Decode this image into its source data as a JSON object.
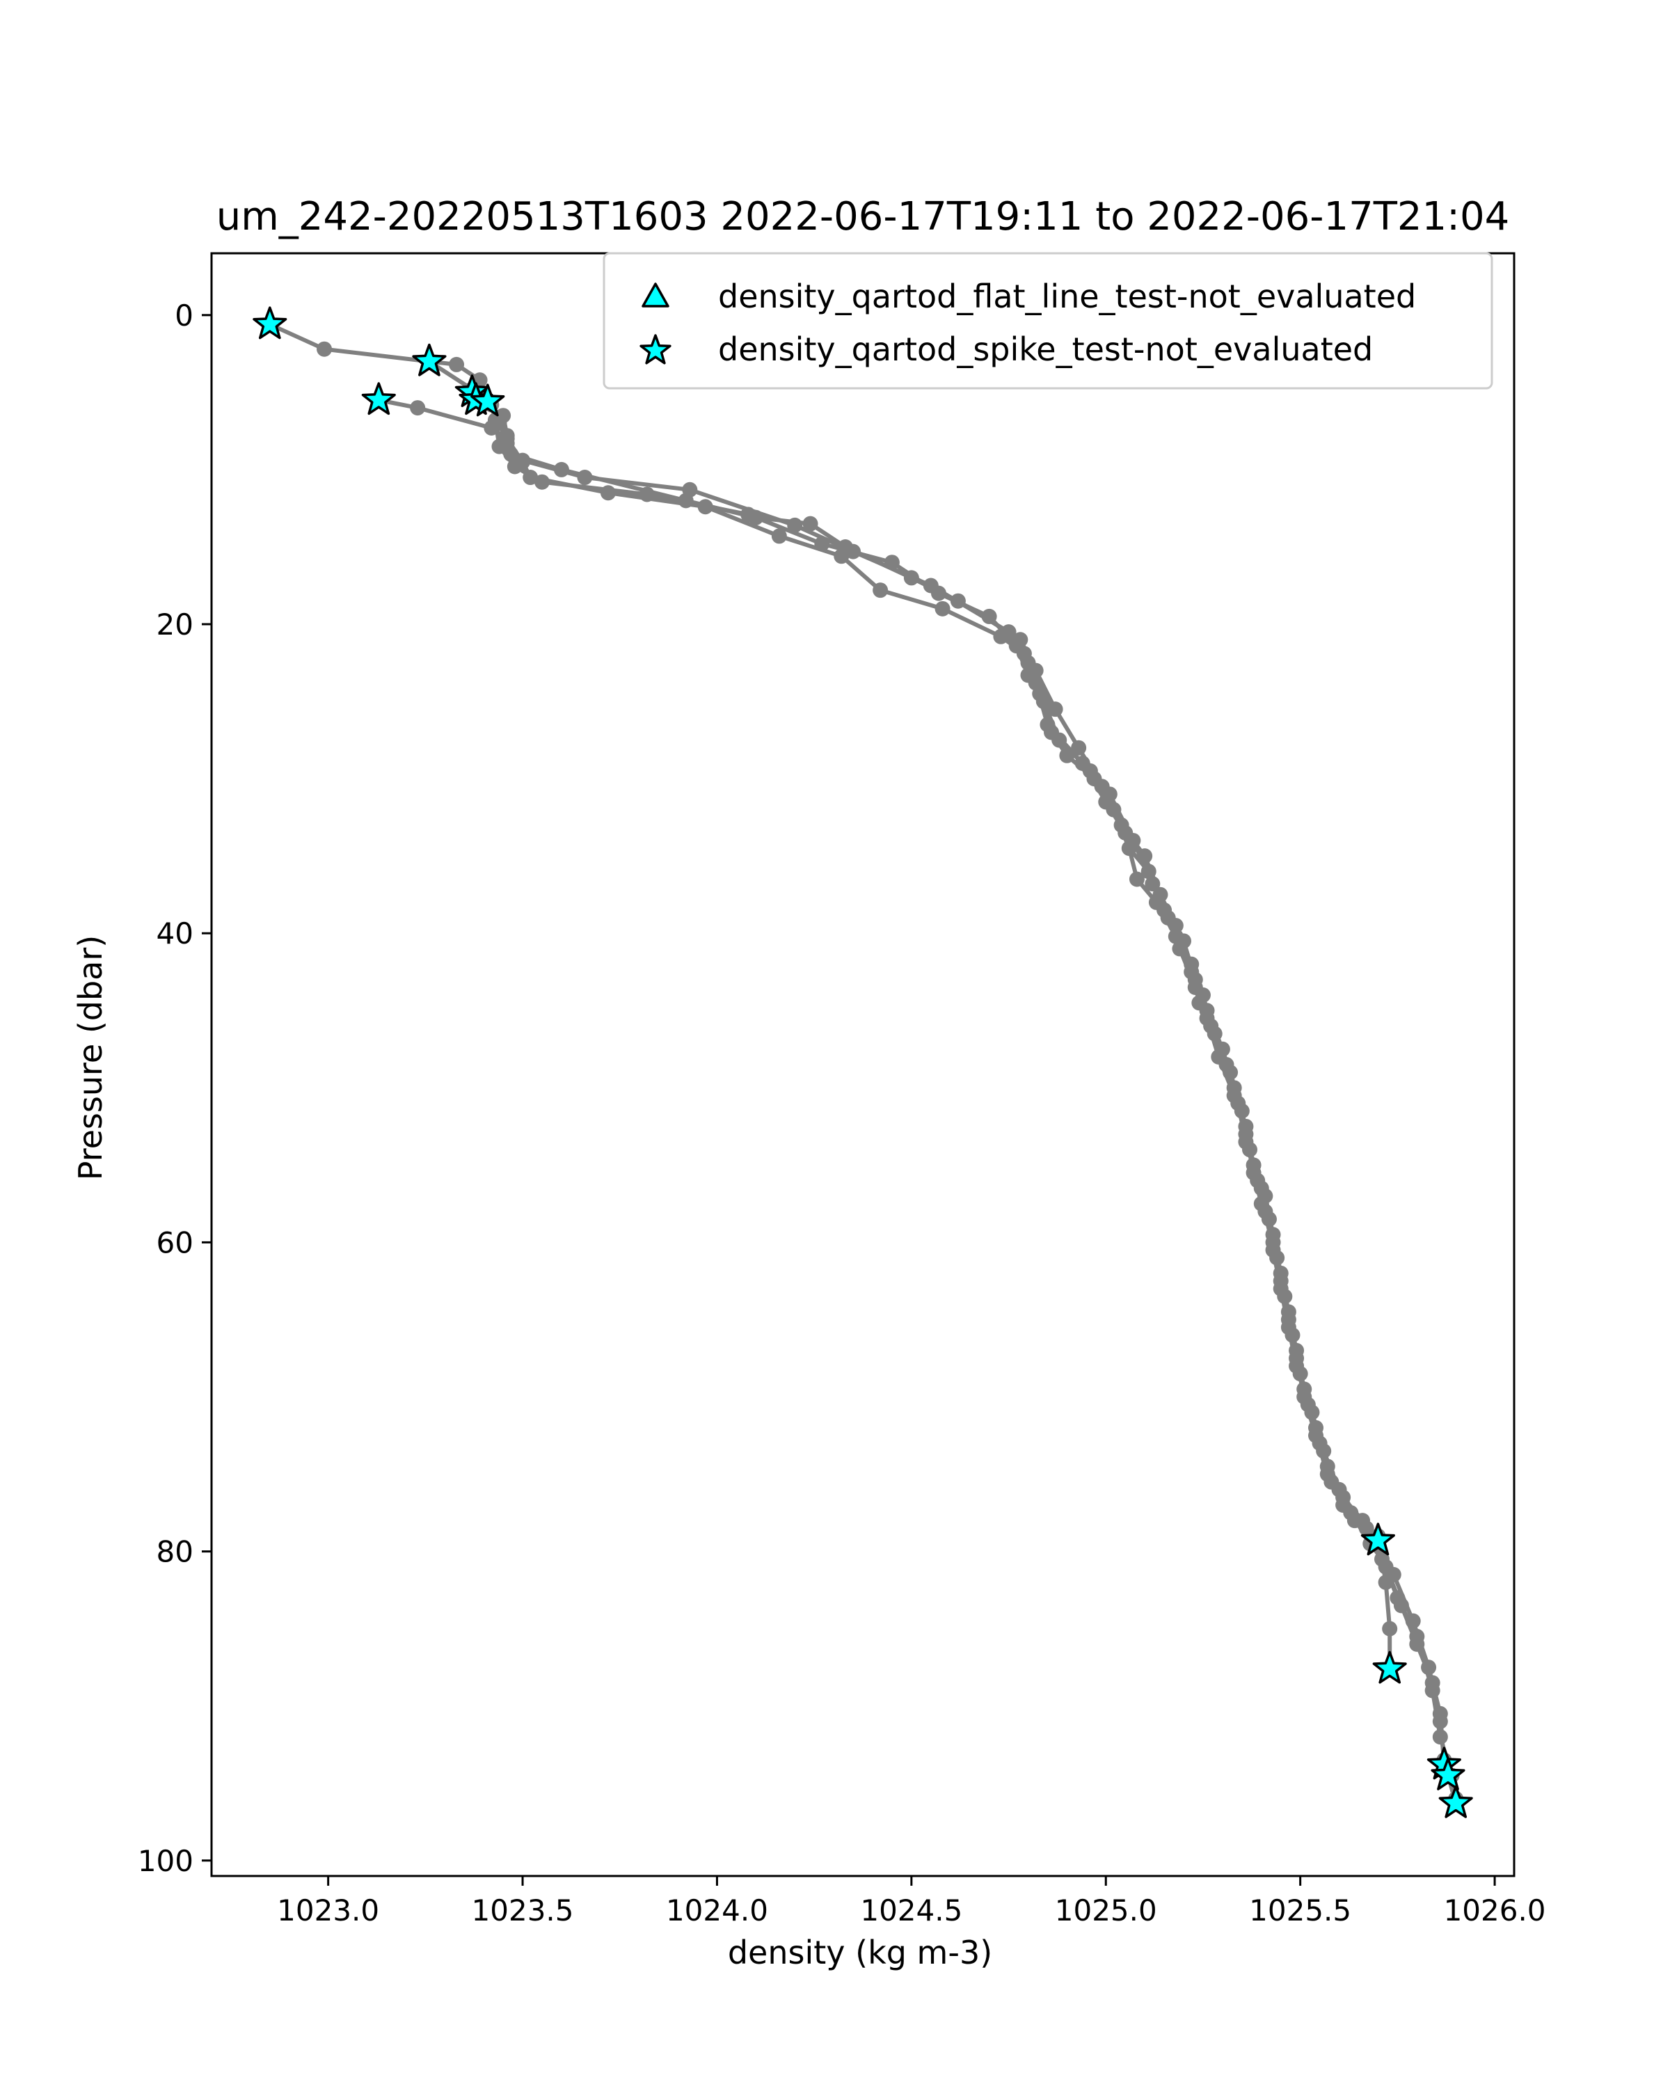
{
  "chart_data": {
    "type": "line",
    "title": "um_242-20220513T1603 2022-06-17T19:11 to 2022-06-17T21:04",
    "xlabel": "density (kg m-3)",
    "ylabel": "Pressure (dbar)",
    "xlim": [
      1022.7,
      1026.05
    ],
    "ylim": [
      101,
      -4
    ],
    "y_inverted": true,
    "x_ticks": [
      1023.0,
      1023.5,
      1024.0,
      1024.5,
      1025.0,
      1025.5,
      1026.0
    ],
    "x_tick_labels": [
      "1023.0",
      "1023.5",
      "1024.0",
      "1024.5",
      "1025.0",
      "1025.5",
      "1026.0"
    ],
    "y_ticks": [
      0,
      20,
      40,
      60,
      80,
      100
    ],
    "y_tick_labels": [
      "0",
      "20",
      "40",
      "60",
      "80",
      "100"
    ],
    "grid": false,
    "legend_position": "top-right",
    "colors": {
      "profile_line": "#808080",
      "flag_marker_fill": "#00ffff",
      "flag_marker_edge": "#000000"
    },
    "legend": [
      {
        "label": "density_qartod_flat_line_test-not_evaluated",
        "marker": "triangle"
      },
      {
        "label": "density_qartod_spike_test-not_evaluated",
        "marker": "star"
      }
    ],
    "series": [
      {
        "marker": "dot",
        "points": [
          [
            1022.85,
            0.6
          ],
          [
            1022.99,
            2.2
          ],
          [
            1023.26,
            3.0
          ],
          [
            1023.33,
            3.2
          ],
          [
            1023.39,
            4.2
          ],
          [
            1023.41,
            5.5
          ],
          [
            1023.44,
            7.0
          ],
          [
            1023.46,
            8.3
          ],
          [
            1023.5,
            9.4
          ],
          [
            1023.66,
            10.5
          ],
          [
            1023.93,
            11.3
          ],
          [
            1024.2,
            13.6
          ],
          [
            1024.35,
            15.3
          ],
          [
            1024.55,
            17.5
          ],
          [
            1024.75,
            20.5
          ],
          [
            1024.8,
            22.5
          ],
          [
            1024.83,
            24.5
          ],
          [
            1024.86,
            27.0
          ],
          [
            1024.9,
            28.5
          ],
          [
            1024.97,
            30.0
          ],
          [
            1025.02,
            32.0
          ],
          [
            1025.06,
            34.5
          ],
          [
            1025.11,
            36.0
          ],
          [
            1025.15,
            38.5
          ],
          [
            1025.2,
            40.5
          ],
          [
            1025.23,
            43.0
          ],
          [
            1025.26,
            45.0
          ],
          [
            1025.3,
            47.5
          ],
          [
            1025.33,
            50.0
          ],
          [
            1025.36,
            52.5
          ],
          [
            1025.38,
            55.0
          ],
          [
            1025.41,
            57.0
          ],
          [
            1025.43,
            59.5
          ],
          [
            1025.45,
            62.0
          ],
          [
            1025.47,
            64.5
          ],
          [
            1025.49,
            67.0
          ],
          [
            1025.51,
            69.5
          ],
          [
            1025.54,
            72.0
          ],
          [
            1025.57,
            74.5
          ],
          [
            1025.61,
            76.5
          ],
          [
            1025.66,
            78.0
          ],
          [
            1025.7,
            79.3
          ],
          [
            1025.72,
            81.0
          ],
          [
            1025.76,
            83.5
          ],
          [
            1025.8,
            86.0
          ],
          [
            1025.84,
            88.5
          ],
          [
            1025.86,
            91.0
          ],
          [
            1025.87,
            93.5
          ],
          [
            1025.88,
            94.5
          ],
          [
            1025.9,
            96.3
          ]
        ]
      },
      {
        "marker": "dot",
        "points": [
          [
            1023.26,
            3.0
          ],
          [
            1023.37,
            4.8
          ],
          [
            1023.38,
            5.5
          ],
          [
            1023.45,
            6.5
          ],
          [
            1023.46,
            7.8
          ],
          [
            1023.47,
            9.0
          ],
          [
            1023.6,
            10.0
          ],
          [
            1023.92,
            12.0
          ],
          [
            1024.1,
            13.1
          ],
          [
            1024.24,
            13.5
          ],
          [
            1024.33,
            15.0
          ],
          [
            1024.5,
            17.0
          ],
          [
            1024.62,
            18.5
          ],
          [
            1024.78,
            21.0
          ],
          [
            1024.82,
            23.0
          ],
          [
            1024.87,
            25.5
          ],
          [
            1024.93,
            28.0
          ],
          [
            1024.99,
            30.5
          ],
          [
            1025.04,
            33.0
          ],
          [
            1025.1,
            35.0
          ],
          [
            1025.14,
            37.5
          ],
          [
            1025.18,
            39.5
          ],
          [
            1025.22,
            42.0
          ],
          [
            1025.24,
            44.5
          ],
          [
            1025.28,
            46.5
          ],
          [
            1025.32,
            49.0
          ],
          [
            1025.35,
            51.5
          ],
          [
            1025.37,
            54.0
          ],
          [
            1025.4,
            56.5
          ],
          [
            1025.42,
            58.5
          ],
          [
            1025.44,
            61.0
          ],
          [
            1025.46,
            63.5
          ],
          [
            1025.48,
            66.0
          ],
          [
            1025.5,
            68.5
          ],
          [
            1025.53,
            71.0
          ],
          [
            1025.56,
            73.5
          ],
          [
            1025.6,
            76.0
          ],
          [
            1025.64,
            78.0
          ],
          [
            1025.7,
            79.0
          ],
          [
            1025.72,
            82.0
          ],
          [
            1025.73,
            85.0
          ],
          [
            1025.73,
            87.6
          ]
        ]
      },
      {
        "marker": "dot",
        "points": [
          [
            1023.13,
            5.5
          ],
          [
            1023.23,
            6.0
          ],
          [
            1023.42,
            7.3
          ],
          [
            1023.46,
            8.0
          ],
          [
            1023.5,
            9.5
          ],
          [
            1023.52,
            10.5
          ],
          [
            1023.72,
            11.5
          ],
          [
            1023.97,
            12.4
          ],
          [
            1024.16,
            14.3
          ],
          [
            1024.32,
            15.6
          ],
          [
            1024.42,
            17.8
          ],
          [
            1024.58,
            19.0
          ],
          [
            1024.73,
            20.8
          ],
          [
            1024.79,
            21.9
          ],
          [
            1024.82,
            23.8
          ],
          [
            1024.85,
            26.5
          ],
          [
            1024.94,
            29.0
          ],
          [
            1025.0,
            31.5
          ],
          [
            1025.05,
            33.5
          ],
          [
            1025.08,
            36.5
          ],
          [
            1025.13,
            38.0
          ],
          [
            1025.18,
            40.2
          ],
          [
            1025.22,
            42.5
          ],
          [
            1025.25,
            44.0
          ],
          [
            1025.27,
            46.0
          ],
          [
            1025.31,
            48.5
          ],
          [
            1025.34,
            51.0
          ],
          [
            1025.36,
            53.5
          ],
          [
            1025.39,
            56.0
          ],
          [
            1025.41,
            58.0
          ],
          [
            1025.43,
            60.5
          ],
          [
            1025.45,
            63.0
          ],
          [
            1025.47,
            65.5
          ],
          [
            1025.49,
            68.0
          ],
          [
            1025.52,
            70.5
          ],
          [
            1025.55,
            73.0
          ],
          [
            1025.58,
            75.5
          ],
          [
            1025.63,
            77.5
          ],
          [
            1025.68,
            79.5
          ],
          [
            1025.74,
            81.5
          ],
          [
            1025.79,
            84.5
          ],
          [
            1025.83,
            87.5
          ],
          [
            1025.86,
            90.5
          ],
          [
            1025.87,
            93.8
          ]
        ]
      },
      {
        "marker": "dot",
        "points": [
          [
            1023.38,
            5.0
          ],
          [
            1023.42,
            5.8
          ],
          [
            1023.43,
            6.8
          ],
          [
            1023.44,
            8.5
          ],
          [
            1023.48,
            9.8
          ],
          [
            1023.55,
            10.8
          ],
          [
            1023.82,
            11.6
          ],
          [
            1024.08,
            12.9
          ],
          [
            1024.27,
            14.8
          ],
          [
            1024.45,
            16.0
          ],
          [
            1024.57,
            18.0
          ],
          [
            1024.7,
            19.5
          ],
          [
            1024.77,
            21.4
          ],
          [
            1024.8,
            23.3
          ],
          [
            1024.84,
            25.0
          ],
          [
            1024.88,
            27.5
          ],
          [
            1024.96,
            29.5
          ],
          [
            1025.01,
            31.0
          ],
          [
            1025.07,
            34.0
          ],
          [
            1025.12,
            36.8
          ],
          [
            1025.16,
            39.0
          ],
          [
            1025.19,
            41.0
          ],
          [
            1025.23,
            43.5
          ],
          [
            1025.26,
            45.5
          ],
          [
            1025.29,
            48.0
          ],
          [
            1025.33,
            50.5
          ],
          [
            1025.36,
            53.0
          ],
          [
            1025.38,
            55.5
          ],
          [
            1025.4,
            57.5
          ],
          [
            1025.43,
            60.0
          ],
          [
            1025.45,
            62.5
          ],
          [
            1025.47,
            65.0
          ],
          [
            1025.49,
            67.5
          ],
          [
            1025.51,
            70.0
          ],
          [
            1025.54,
            72.5
          ],
          [
            1025.57,
            75.0
          ],
          [
            1025.61,
            77.0
          ],
          [
            1025.67,
            78.5
          ],
          [
            1025.71,
            80.5
          ],
          [
            1025.75,
            83.0
          ],
          [
            1025.8,
            85.5
          ],
          [
            1025.84,
            89.0
          ],
          [
            1025.86,
            92.0
          ],
          [
            1025.89,
            94.5
          ],
          [
            1025.9,
            96.0
          ]
        ]
      }
    ],
    "flagged_points": {
      "legend_label": "density_qartod_spike_test-not_evaluated",
      "marker": "star",
      "points": [
        [
          1022.85,
          0.6
        ],
        [
          1023.26,
          3.0
        ],
        [
          1023.37,
          5.0
        ],
        [
          1023.38,
          5.5
        ],
        [
          1023.41,
          5.6
        ],
        [
          1023.13,
          5.5
        ],
        [
          1025.7,
          79.3
        ],
        [
          1025.73,
          87.6
        ],
        [
          1025.87,
          93.8
        ],
        [
          1025.88,
          94.5
        ],
        [
          1025.9,
          96.3
        ]
      ]
    }
  }
}
